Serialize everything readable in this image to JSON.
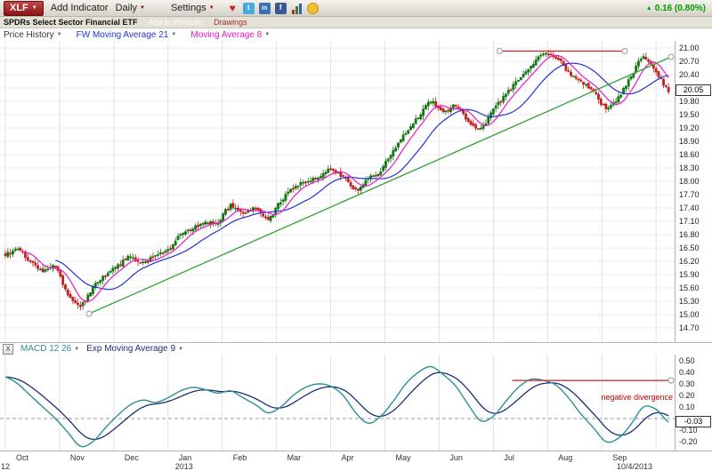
{
  "toolbar": {
    "symbol": "XLF",
    "add_indicator_label": "Add Indicator",
    "period_label": "Daily",
    "settings_label": "Settings",
    "change_value": "0.16 (0.80%)"
  },
  "icons": {
    "dropdown_arrow": "▼",
    "up_arrow": "▲",
    "heart": "♥",
    "twitter": "t",
    "share": "in",
    "facebook": "f"
  },
  "symbol_bar": {
    "name": "SPDRs Select Sector Financial ETF",
    "add_to_portfolio_label": "Add to Portfolio",
    "drawings_label": "Drawings"
  },
  "indicator_bar": {
    "price_history_label": "Price History",
    "ma21_label": "FW Moving Average 21",
    "ma8_label": "Moving Average 8"
  },
  "macd_bar": {
    "close_label": "X",
    "macd_label": "MACD 12 26",
    "ema_label": "Exp Moving Average 9"
  },
  "price_axis": {
    "ticks": [
      "21.00",
      "20.70",
      "20.40",
      "20.10",
      "19.80",
      "19.50",
      "19.20",
      "18.90",
      "18.60",
      "18.30",
      "18.00",
      "17.70",
      "17.40",
      "17.10",
      "16.80",
      "16.50",
      "16.20",
      "15.90",
      "15.60",
      "15.30",
      "15.00",
      "14.70"
    ],
    "last_price": "20.05"
  },
  "macd_axis": {
    "ticks": [
      "0.50",
      "0.40",
      "0.30",
      "0.20",
      "0.10",
      "-0.10",
      "-0.20"
    ],
    "last_value": "-0.03"
  },
  "time_axis": {
    "months": [
      "Oct",
      "Nov",
      "Dec",
      "Jan",
      "Feb",
      "Mar",
      "Apr",
      "May",
      "Jun",
      "Jul",
      "Aug",
      "Sep"
    ],
    "year_left": "12",
    "year_label": "2013",
    "last_date": "10/4/2013"
  },
  "annotations": {
    "negative_divergence": "negative divergence"
  },
  "colors": {
    "up_candle": "#157515",
    "down_candle": "#c22020",
    "ma21": "#2233cc",
    "ma8": "#e818c8",
    "trend_line": "#33a033",
    "resistance_line": "#cc2222",
    "macd_line": "#2d9090",
    "macd_signal": "#1c2e7a",
    "change_text": "#00a000",
    "negative_divergence_text": "#cc0000"
  },
  "chart_data": [
    {
      "type": "candlestick",
      "title": "XLF daily candlesticks with FW Moving Average 21 (blue) and Moving Average 8 (magenta)",
      "x_range": [
        "Oct 2012",
        "10/4/2013"
      ],
      "ylim": [
        14.7,
        21.0
      ],
      "weekly_closes": [
        16.35,
        16.45,
        16.2,
        16.0,
        16.05,
        15.45,
        15.2,
        15.6,
        15.9,
        16.1,
        16.3,
        16.15,
        16.35,
        16.45,
        16.8,
        16.95,
        17.05,
        17.1,
        17.45,
        17.3,
        17.4,
        17.15,
        17.55,
        17.85,
        18.0,
        18.1,
        18.25,
        18.1,
        17.8,
        18.05,
        18.25,
        18.7,
        19.1,
        19.45,
        19.8,
        19.55,
        19.7,
        19.35,
        19.2,
        19.6,
        19.95,
        20.3,
        20.6,
        20.85,
        20.8,
        20.45,
        20.25,
        20.0,
        19.65,
        19.9,
        20.35,
        20.8,
        20.45,
        20.05
      ],
      "last_close": 20.05,
      "up_color": "#157515",
      "down_color": "#c22020",
      "ma21_color": "#2233cc",
      "ma8_color": "#e818c8",
      "trend_line": {
        "start_week": 6.7,
        "start_price": 15.02,
        "end_week": 53.2,
        "end_price": 20.8,
        "color": "#33a033"
      },
      "resistance_line": {
        "start_week": 39.5,
        "end_week": 49.5,
        "price": 20.93,
        "color": "#cc2222"
      }
    },
    {
      "type": "line",
      "title": "MACD 12 26 (teal) with Exp Moving Average 9 signal (navy)",
      "ylim": [
        -0.25,
        0.52
      ],
      "weekly_macd": [
        0.36,
        0.3,
        0.2,
        0.1,
        0.0,
        -0.12,
        -0.24,
        -0.2,
        -0.08,
        0.03,
        0.12,
        0.16,
        0.14,
        0.18,
        0.24,
        0.27,
        0.25,
        0.22,
        0.24,
        0.18,
        0.12,
        0.05,
        0.1,
        0.2,
        0.27,
        0.3,
        0.28,
        0.2,
        0.05,
        -0.04,
        0.02,
        0.15,
        0.3,
        0.4,
        0.45,
        0.38,
        0.28,
        0.12,
        -0.02,
        0.02,
        0.15,
        0.27,
        0.34,
        0.33,
        0.29,
        0.18,
        0.04,
        -0.08,
        -0.2,
        -0.17,
        -0.05,
        0.1,
        0.08,
        -0.03
      ],
      "last_value": -0.03,
      "macd_color": "#2d9090",
      "signal_color": "#1c2e7a",
      "divergence_line": {
        "start_week": 40.5,
        "end_week": 53.2,
        "value": 0.33,
        "color": "#cc2222"
      }
    }
  ]
}
